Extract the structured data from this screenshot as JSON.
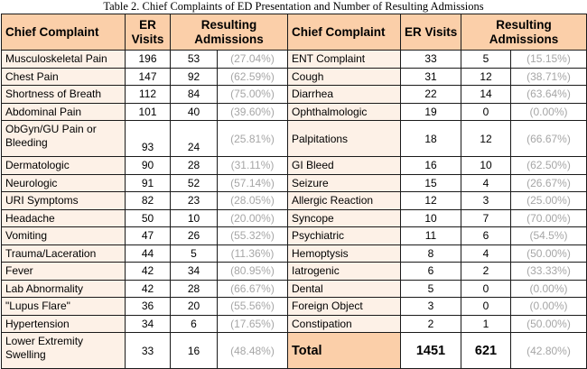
{
  "caption": "Table 2. Chief Complaints of ED Presentation and Number of Resulting Admissions",
  "headers": {
    "left_complaint": "Chief Complaint",
    "left_visits_l1": "ER",
    "left_visits_l2": "Visits",
    "left_adm_l1": "Resulting",
    "left_adm_l2": "Admissions",
    "right_complaint": "Chief Complaint",
    "right_visits": "ER Visits",
    "right_adm_l1": "Resulting",
    "right_adm_l2": "Admissions"
  },
  "rows": [
    {
      "lc": "Musculoskeletal Pain",
      "lv": "196",
      "la": "53",
      "lp": "(27.04%)",
      "rc": "ENT Complaint",
      "rv": "33",
      "ra": "5",
      "rp": "(15.15%)"
    },
    {
      "lc": "Chest Pain",
      "lv": "147",
      "la": "92",
      "lp": "(62.59%)",
      "rc": "Cough",
      "rv": "31",
      "ra": "12",
      "rp": "(38.71%)"
    },
    {
      "lc": "Shortness of Breath",
      "lv": "112",
      "la": "84",
      "lp": "(75.00%)",
      "rc": "Diarrhea",
      "rv": "22",
      "ra": "14",
      "rp": "(63.64%)"
    },
    {
      "lc": "Abdominal Pain",
      "lv": "101",
      "la": "40",
      "lp": "(39.60%)",
      "rc": "Ophthalmologic",
      "rv": "19",
      "ra": "0",
      "rp": "(0.00%)"
    },
    {
      "lc": "ObGyn/GU Pain or Bleeding",
      "lv": "93",
      "la": "24",
      "lp": "(25.81%)",
      "rc": "Palpitations",
      "rv": "18",
      "ra": "12",
      "rp": "(66.67%)"
    },
    {
      "lc": "Dermatologic",
      "lv": "90",
      "la": "28",
      "lp": "(31.11%)",
      "rc": "GI Bleed",
      "rv": "16",
      "ra": "10",
      "rp": "(62.50%)"
    },
    {
      "lc": "Neurologic",
      "lv": "91",
      "la": "52",
      "lp": "(57.14%)",
      "rc": "Seizure",
      "rv": "15",
      "ra": "4",
      "rp": "(26.67%)"
    },
    {
      "lc": "URI Symptoms",
      "lv": "82",
      "la": "23",
      "lp": "(28.05%)",
      "rc": "Allergic Reaction",
      "rv": "12",
      "ra": "3",
      "rp": "(25.00%)"
    },
    {
      "lc": "Headache",
      "lv": "50",
      "la": "10",
      "lp": "(20.00%)",
      "rc": "Syncope",
      "rv": "10",
      "ra": "7",
      "rp": "(70.00%)"
    },
    {
      "lc": "Vomiting",
      "lv": "47",
      "la": "26",
      "lp": "(55.32%)",
      "rc": "Psychiatric",
      "rv": "11",
      "ra": "6",
      "rp": "(54.5%)"
    },
    {
      "lc": "Trauma/Laceration",
      "lv": "44",
      "la": "5",
      "lp": "(11.36%)",
      "rc": "Hemoptysis",
      "rv": "8",
      "ra": "4",
      "rp": "(50.00%)"
    },
    {
      "lc": "Fever",
      "lv": "42",
      "la": "34",
      "lp": "(80.95%)",
      "rc": "Iatrogenic",
      "rv": "6",
      "ra": "2",
      "rp": "(33.33%)"
    },
    {
      "lc": "Lab Abnormality",
      "lv": "42",
      "la": "28",
      "lp": "(66.67%)",
      "rc": "Dental",
      "rv": "5",
      "ra": "0",
      "rp": "(0.00%)"
    },
    {
      "lc": "\"Lupus Flare\"",
      "lv": "36",
      "la": "20",
      "lp": "(55.56%)",
      "rc": "Foreign Object",
      "rv": "3",
      "ra": "0",
      "rp": "(0.00%)"
    },
    {
      "lc": "Hypertension",
      "lv": "34",
      "la": "6",
      "lp": "(17.65%)",
      "rc": "Constipation",
      "rv": "2",
      "ra": "1",
      "rp": "(50.00%)"
    }
  ],
  "last_row": {
    "lc": "Lower Extremity Swelling",
    "lv": "33",
    "la": "16",
    "lp": "(48.48%)",
    "total_label": "Total",
    "total_visits": "1451",
    "total_adm": "621",
    "total_pct": "(42.80%)"
  }
}
